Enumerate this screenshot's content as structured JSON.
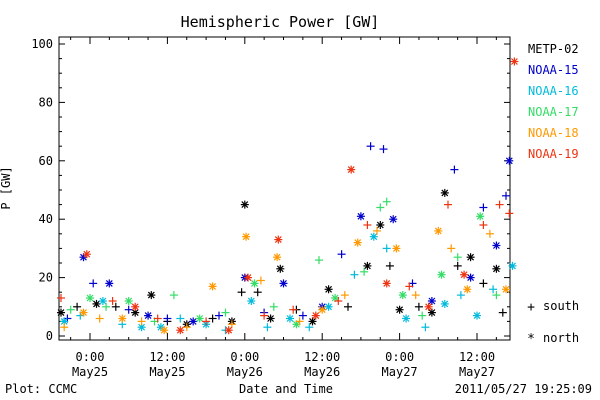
{
  "chart_data": {
    "type": "scatter",
    "title": "Hemispheric Power [GW]",
    "ylabel": "P [GW]",
    "xlabel": "Date and Time",
    "ylim": [
      0,
      100
    ],
    "yticks": [
      0,
      20,
      40,
      60,
      80,
      100
    ],
    "x_unit": "hours since 2011-05-25 00:00",
    "xlim": [
      -5,
      66
    ],
    "xticks": [
      {
        "x": 0,
        "time": "0:00",
        "date": "May25"
      },
      {
        "x": 12,
        "time": "12:00",
        "date": "May25"
      },
      {
        "x": 24,
        "time": "0:00",
        "date": "May26"
      },
      {
        "x": 36,
        "time": "12:00",
        "date": "May26"
      },
      {
        "x": 48,
        "time": "0:00",
        "date": "May27"
      },
      {
        "x": 60,
        "time": "12:00",
        "date": "May27"
      }
    ],
    "grid": false,
    "legend_position": "right",
    "markers": {
      "south": "+",
      "north": "*"
    },
    "series": [
      {
        "name": "METP-02",
        "color": "#000000",
        "points": [
          {
            "x": -4.5,
            "y": 8,
            "h": "north"
          },
          {
            "x": -2,
            "y": 10,
            "h": "south"
          },
          {
            "x": 1,
            "y": 11,
            "h": "north"
          },
          {
            "x": 4,
            "y": 10,
            "h": "south"
          },
          {
            "x": 7,
            "y": 8,
            "h": "north"
          },
          {
            "x": 9.5,
            "y": 14,
            "h": "north"
          },
          {
            "x": 12,
            "y": 5,
            "h": "south"
          },
          {
            "x": 15,
            "y": 4,
            "h": "north"
          },
          {
            "x": 19,
            "y": 6,
            "h": "south"
          },
          {
            "x": 22,
            "y": 5,
            "h": "north"
          },
          {
            "x": 23.5,
            "y": 15,
            "h": "south"
          },
          {
            "x": 24,
            "y": 45,
            "h": "north"
          },
          {
            "x": 26,
            "y": 15,
            "h": "south"
          },
          {
            "x": 28,
            "y": 6,
            "h": "north"
          },
          {
            "x": 29.5,
            "y": 23,
            "h": "north"
          },
          {
            "x": 32,
            "y": 9,
            "h": "south"
          },
          {
            "x": 34.5,
            "y": 5,
            "h": "north"
          },
          {
            "x": 37,
            "y": 16,
            "h": "north"
          },
          {
            "x": 40,
            "y": 10,
            "h": "south"
          },
          {
            "x": 43,
            "y": 24,
            "h": "north"
          },
          {
            "x": 45,
            "y": 38,
            "h": "north"
          },
          {
            "x": 46.5,
            "y": 24,
            "h": "south"
          },
          {
            "x": 48,
            "y": 9,
            "h": "north"
          },
          {
            "x": 51,
            "y": 10,
            "h": "south"
          },
          {
            "x": 53,
            "y": 8,
            "h": "north"
          },
          {
            "x": 55,
            "y": 49,
            "h": "north"
          },
          {
            "x": 57,
            "y": 24,
            "h": "south"
          },
          {
            "x": 59,
            "y": 27,
            "h": "north"
          },
          {
            "x": 61,
            "y": 18,
            "h": "south"
          },
          {
            "x": 63,
            "y": 23,
            "h": "north"
          },
          {
            "x": 64,
            "y": 8,
            "h": "south"
          }
        ]
      },
      {
        "name": "NOAA-15",
        "color": "#0000cc",
        "points": [
          {
            "x": -3.5,
            "y": 6,
            "h": "south"
          },
          {
            "x": -1,
            "y": 27,
            "h": "north"
          },
          {
            "x": 0.5,
            "y": 18,
            "h": "south"
          },
          {
            "x": 3,
            "y": 18,
            "h": "north"
          },
          {
            "x": 6,
            "y": 9,
            "h": "south"
          },
          {
            "x": 9,
            "y": 7,
            "h": "north"
          },
          {
            "x": 12,
            "y": 6,
            "h": "south"
          },
          {
            "x": 16,
            "y": 5,
            "h": "north"
          },
          {
            "x": 20,
            "y": 7,
            "h": "south"
          },
          {
            "x": 24,
            "y": 20,
            "h": "north"
          },
          {
            "x": 27,
            "y": 8,
            "h": "south"
          },
          {
            "x": 30,
            "y": 18,
            "h": "north"
          },
          {
            "x": 33,
            "y": 7,
            "h": "south"
          },
          {
            "x": 36,
            "y": 10,
            "h": "north"
          },
          {
            "x": 39,
            "y": 28,
            "h": "south"
          },
          {
            "x": 42,
            "y": 41,
            "h": "north"
          },
          {
            "x": 43.5,
            "y": 65,
            "h": "south"
          },
          {
            "x": 45.5,
            "y": 64,
            "h": "south"
          },
          {
            "x": 47,
            "y": 40,
            "h": "north"
          },
          {
            "x": 50,
            "y": 18,
            "h": "south"
          },
          {
            "x": 53,
            "y": 12,
            "h": "north"
          },
          {
            "x": 56.5,
            "y": 57,
            "h": "south"
          },
          {
            "x": 59,
            "y": 20,
            "h": "north"
          },
          {
            "x": 61,
            "y": 44,
            "h": "south"
          },
          {
            "x": 63,
            "y": 31,
            "h": "north"
          },
          {
            "x": 64.5,
            "y": 48,
            "h": "south"
          },
          {
            "x": 65,
            "y": 60,
            "h": "north"
          }
        ]
      },
      {
        "name": "NOAA-16",
        "color": "#00bbdd",
        "points": [
          {
            "x": -4,
            "y": 5,
            "h": "north"
          },
          {
            "x": -1.5,
            "y": 7,
            "h": "south"
          },
          {
            "x": 2,
            "y": 12,
            "h": "north"
          },
          {
            "x": 5,
            "y": 4,
            "h": "south"
          },
          {
            "x": 8,
            "y": 3,
            "h": "north"
          },
          {
            "x": 11,
            "y": 3,
            "h": "north"
          },
          {
            "x": 14,
            "y": 6,
            "h": "south"
          },
          {
            "x": 18,
            "y": 4,
            "h": "north"
          },
          {
            "x": 21,
            "y": 2,
            "h": "south"
          },
          {
            "x": 25,
            "y": 12,
            "h": "north"
          },
          {
            "x": 27.5,
            "y": 3,
            "h": "south"
          },
          {
            "x": 31,
            "y": 6,
            "h": "north"
          },
          {
            "x": 34,
            "y": 3,
            "h": "south"
          },
          {
            "x": 37,
            "y": 10,
            "h": "north"
          },
          {
            "x": 41,
            "y": 21,
            "h": "south"
          },
          {
            "x": 44,
            "y": 34,
            "h": "north"
          },
          {
            "x": 46,
            "y": 30,
            "h": "south"
          },
          {
            "x": 49,
            "y": 6,
            "h": "north"
          },
          {
            "x": 52,
            "y": 3,
            "h": "south"
          },
          {
            "x": 55,
            "y": 11,
            "h": "north"
          },
          {
            "x": 57.5,
            "y": 14,
            "h": "south"
          },
          {
            "x": 60,
            "y": 7,
            "h": "north"
          },
          {
            "x": 62.5,
            "y": 16,
            "h": "south"
          },
          {
            "x": 65.5,
            "y": 24,
            "h": "north"
          }
        ]
      },
      {
        "name": "NOAA-17",
        "color": "#33dd66",
        "points": [
          {
            "x": -3,
            "y": 9,
            "h": "south"
          },
          {
            "x": 0,
            "y": 13,
            "h": "north"
          },
          {
            "x": 2.5,
            "y": 10,
            "h": "south"
          },
          {
            "x": 6,
            "y": 12,
            "h": "north"
          },
          {
            "x": 10,
            "y": 5,
            "h": "south"
          },
          {
            "x": 13,
            "y": 14,
            "h": "south"
          },
          {
            "x": 17,
            "y": 6,
            "h": "north"
          },
          {
            "x": 21,
            "y": 8,
            "h": "south"
          },
          {
            "x": 25.5,
            "y": 18,
            "h": "north"
          },
          {
            "x": 28.5,
            "y": 10,
            "h": "south"
          },
          {
            "x": 32,
            "y": 4,
            "h": "north"
          },
          {
            "x": 35.5,
            "y": 26,
            "h": "south"
          },
          {
            "x": 38,
            "y": 13,
            "h": "north"
          },
          {
            "x": 42.5,
            "y": 22,
            "h": "south"
          },
          {
            "x": 45,
            "y": 44,
            "h": "south"
          },
          {
            "x": 46,
            "y": 46,
            "h": "south"
          },
          {
            "x": 48.5,
            "y": 14,
            "h": "north"
          },
          {
            "x": 51.5,
            "y": 7,
            "h": "south"
          },
          {
            "x": 54.5,
            "y": 21,
            "h": "north"
          },
          {
            "x": 57,
            "y": 27,
            "h": "south"
          },
          {
            "x": 60.5,
            "y": 41,
            "h": "north"
          },
          {
            "x": 63,
            "y": 14,
            "h": "south"
          }
        ]
      },
      {
        "name": "NOAA-18",
        "color": "#ff9900",
        "points": [
          {
            "x": -4,
            "y": 3,
            "h": "south"
          },
          {
            "x": -1,
            "y": 8,
            "h": "north"
          },
          {
            "x": 1.5,
            "y": 6,
            "h": "south"
          },
          {
            "x": 5,
            "y": 6,
            "h": "north"
          },
          {
            "x": 8,
            "y": 5,
            "h": "south"
          },
          {
            "x": 11.5,
            "y": 2,
            "h": "north"
          },
          {
            "x": 15,
            "y": 3,
            "h": "south"
          },
          {
            "x": 19,
            "y": 17,
            "h": "north"
          },
          {
            "x": 22,
            "y": 4,
            "h": "south"
          },
          {
            "x": 24.2,
            "y": 34,
            "h": "north"
          },
          {
            "x": 26.5,
            "y": 19,
            "h": "south"
          },
          {
            "x": 29,
            "y": 27,
            "h": "north"
          },
          {
            "x": 32.5,
            "y": 5,
            "h": "south"
          },
          {
            "x": 36,
            "y": 9,
            "h": "north"
          },
          {
            "x": 39.5,
            "y": 14,
            "h": "south"
          },
          {
            "x": 41.5,
            "y": 32,
            "h": "north"
          },
          {
            "x": 44.5,
            "y": 36,
            "h": "south"
          },
          {
            "x": 47.5,
            "y": 30,
            "h": "north"
          },
          {
            "x": 50.5,
            "y": 14,
            "h": "south"
          },
          {
            "x": 54,
            "y": 36,
            "h": "north"
          },
          {
            "x": 56,
            "y": 30,
            "h": "south"
          },
          {
            "x": 58.5,
            "y": 16,
            "h": "north"
          },
          {
            "x": 62,
            "y": 35,
            "h": "south"
          },
          {
            "x": 64.5,
            "y": 16,
            "h": "north"
          }
        ]
      },
      {
        "name": "NOAA-19",
        "color": "#ee3311",
        "points": [
          {
            "x": -4.5,
            "y": 13,
            "h": "south"
          },
          {
            "x": -0.5,
            "y": 28,
            "h": "north"
          },
          {
            "x": 3.5,
            "y": 12,
            "h": "south"
          },
          {
            "x": 7,
            "y": 10,
            "h": "north"
          },
          {
            "x": 10.5,
            "y": 6,
            "h": "south"
          },
          {
            "x": 14,
            "y": 2,
            "h": "north"
          },
          {
            "x": 18,
            "y": 5,
            "h": "south"
          },
          {
            "x": 21.5,
            "y": 2,
            "h": "north"
          },
          {
            "x": 24.5,
            "y": 20,
            "h": "north"
          },
          {
            "x": 27,
            "y": 7,
            "h": "south"
          },
          {
            "x": 29.2,
            "y": 33,
            "h": "north"
          },
          {
            "x": 31.5,
            "y": 9,
            "h": "south"
          },
          {
            "x": 35,
            "y": 7,
            "h": "north"
          },
          {
            "x": 38.5,
            "y": 12,
            "h": "south"
          },
          {
            "x": 40.5,
            "y": 57,
            "h": "north"
          },
          {
            "x": 43,
            "y": 38,
            "h": "south"
          },
          {
            "x": 46,
            "y": 18,
            "h": "north"
          },
          {
            "x": 49.5,
            "y": 17,
            "h": "south"
          },
          {
            "x": 52.5,
            "y": 10,
            "h": "north"
          },
          {
            "x": 55.5,
            "y": 45,
            "h": "south"
          },
          {
            "x": 58,
            "y": 21,
            "h": "north"
          },
          {
            "x": 61,
            "y": 38,
            "h": "south"
          },
          {
            "x": 63.5,
            "y": 45,
            "h": "south"
          },
          {
            "x": 65,
            "y": 42,
            "h": "south"
          },
          {
            "x": 65.8,
            "y": 94,
            "h": "north"
          }
        ]
      }
    ]
  },
  "footer": {
    "left": "Plot: CCMC",
    "center": "Date and Time",
    "right": "2011/05/27 19:25:09"
  },
  "legend_markers": {
    "south_label": "south",
    "north_label": "north",
    "south_symbol": "+",
    "north_symbol": "*"
  }
}
